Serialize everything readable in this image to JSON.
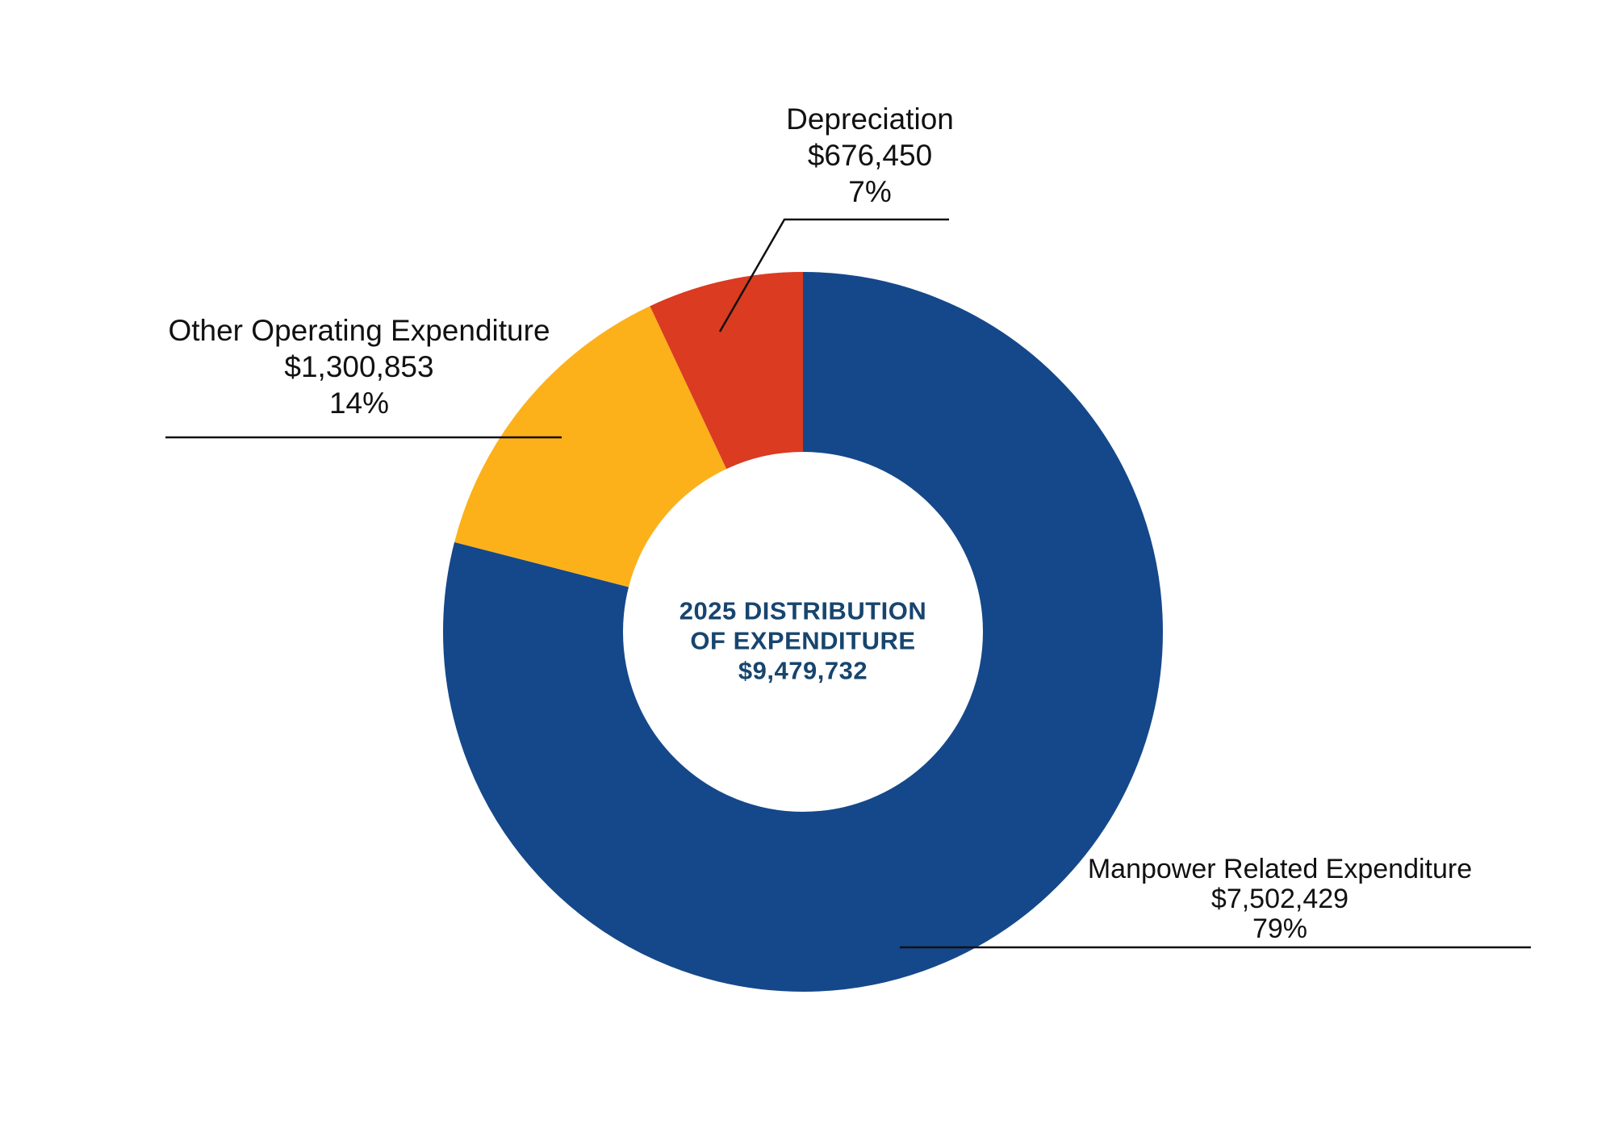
{
  "page": {
    "background": "#ffffff"
  },
  "chart_data": {
    "type": "pie",
    "subtype": "donut",
    "title": "2025 DISTRIBUTION OF EXPENDITURE",
    "total_value": 9479732,
    "total_text": "$9,479,732",
    "center_label": {
      "line1": "2025 DISTRIBUTION",
      "line2": "OF EXPENDITURE",
      "line3": "$9,479,732",
      "color": "#17456E"
    },
    "categories": [
      "Manpower Related Expenditure",
      "Other Operating Expenditure",
      "Depreciation"
    ],
    "values": [
      7502429,
      1300853,
      676450
    ],
    "percentages": [
      79,
      14,
      7
    ],
    "slices": [
      {
        "label": "Manpower Related Expenditure",
        "value": 7502429,
        "value_text": "$7,502,429",
        "percent": 79,
        "percent_text": "79%",
        "color": "#15488A"
      },
      {
        "label": "Other Operating Expenditure",
        "value": 1300853,
        "value_text": "$1,300,853",
        "percent": 14,
        "percent_text": "14%",
        "color": "#FCB11B"
      },
      {
        "label": "Depreciation",
        "value": 676450,
        "value_text": "$676,450",
        "percent": 7,
        "percent_text": "7%",
        "color": "#DA3B21"
      }
    ],
    "start_angle_deg": 0,
    "direction": "clockwise",
    "inner_radius_ratio": 0.5,
    "legend_position": "none",
    "grid": "off",
    "label_color": "#111111",
    "leader_line_color": "#111111"
  }
}
